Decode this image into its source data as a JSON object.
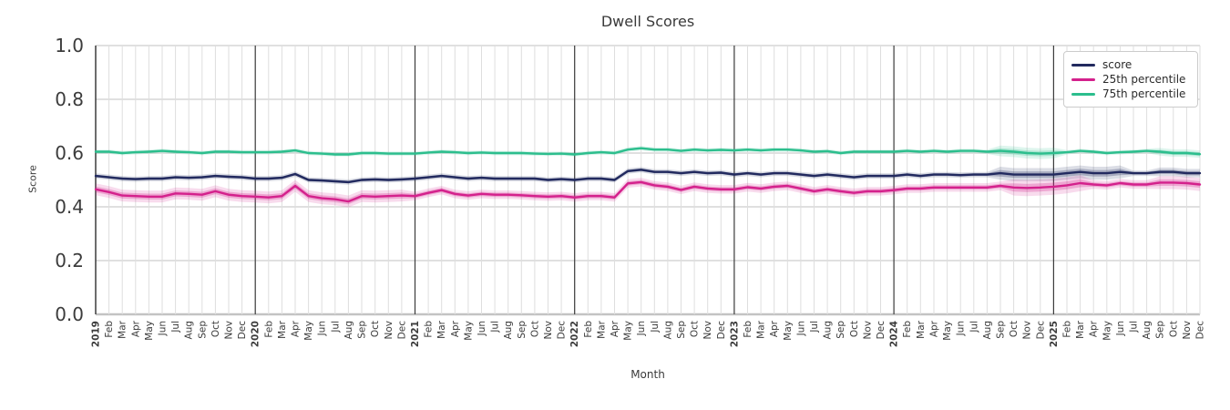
{
  "chart_data": {
    "type": "line",
    "title": "Dwell Scores",
    "xlabel": "Month",
    "ylabel": "Score",
    "ylim": [
      0.0,
      1.0
    ],
    "grid": true,
    "legend_position": "upper right",
    "y_ticks": {
      "labels": [
        "0.0",
        "0.2",
        "0.4",
        "0.6",
        "0.8",
        "1.0"
      ],
      "values": [
        0.0,
        0.2,
        0.4,
        0.6,
        0.8,
        1.0
      ]
    },
    "x": [
      "2019",
      "Feb",
      "Mar",
      "Apr",
      "May",
      "Jun",
      "Jul",
      "Aug",
      "Sep",
      "Oct",
      "Nov",
      "Dec",
      "2020",
      "Feb",
      "Mar",
      "Apr",
      "May",
      "Jun",
      "Jul",
      "Aug",
      "Sep",
      "Oct",
      "Nov",
      "Dec",
      "2021",
      "Feb",
      "Mar",
      "Apr",
      "May",
      "Jun",
      "Jul",
      "Aug",
      "Sep",
      "Oct",
      "Nov",
      "Dec",
      "2022",
      "Feb",
      "Mar",
      "Apr",
      "May",
      "Jun",
      "Jul",
      "Aug",
      "Sep",
      "Oct",
      "Nov",
      "Dec",
      "2023",
      "Feb",
      "Mar",
      "Apr",
      "May",
      "Jun",
      "Jul",
      "Aug",
      "Sep",
      "Oct",
      "Nov",
      "Dec",
      "2024",
      "Feb",
      "Mar",
      "Apr",
      "May",
      "Jun",
      "Jul",
      "Aug",
      "Sep",
      "Oct",
      "Nov",
      "Dec",
      "2025",
      "Feb",
      "Mar",
      "Apr",
      "May",
      "Jun",
      "Jul",
      "Aug",
      "Sep",
      "Oct",
      "Nov",
      "Dec"
    ],
    "year_line_indices": [
      12,
      24,
      36,
      48,
      60,
      72
    ],
    "series": [
      {
        "name": "score",
        "color": "#222a5f",
        "values": [
          0.515,
          0.51,
          0.505,
          0.503,
          0.505,
          0.505,
          0.51,
          0.508,
          0.51,
          0.515,
          0.512,
          0.51,
          0.505,
          0.505,
          0.508,
          0.522,
          0.5,
          0.498,
          0.495,
          0.492,
          0.5,
          0.502,
          0.5,
          0.502,
          0.505,
          0.51,
          0.515,
          0.51,
          0.505,
          0.508,
          0.505,
          0.505,
          0.505,
          0.505,
          0.5,
          0.503,
          0.5,
          0.505,
          0.505,
          0.5,
          0.533,
          0.538,
          0.53,
          0.53,
          0.525,
          0.53,
          0.525,
          0.527,
          0.52,
          0.525,
          0.52,
          0.525,
          0.525,
          0.52,
          0.515,
          0.52,
          0.515,
          0.51,
          0.515,
          0.515,
          0.515,
          0.52,
          0.515,
          0.52,
          0.52,
          0.518,
          0.52,
          0.52,
          0.525,
          0.52,
          0.52,
          0.52,
          0.52,
          0.525,
          0.53,
          0.525,
          0.525,
          0.53,
          0.525,
          0.525,
          0.53,
          0.53,
          0.525,
          0.525
        ],
        "band": {
          "base": 0.01,
          "segments": [
            {
              "from": 68,
              "to": 77,
              "hw": 0.024
            },
            {
              "from": 80,
              "to": 83,
              "hw": 0.016
            }
          ]
        }
      },
      {
        "name": "25th percentile",
        "color": "#d4218c",
        "values": [
          0.465,
          0.455,
          0.442,
          0.44,
          0.438,
          0.438,
          0.45,
          0.448,
          0.445,
          0.458,
          0.445,
          0.44,
          0.438,
          0.435,
          0.44,
          0.478,
          0.44,
          0.432,
          0.428,
          0.42,
          0.44,
          0.438,
          0.44,
          0.442,
          0.44,
          0.452,
          0.462,
          0.448,
          0.442,
          0.448,
          0.445,
          0.445,
          0.443,
          0.44,
          0.438,
          0.44,
          0.435,
          0.44,
          0.44,
          0.435,
          0.487,
          0.492,
          0.48,
          0.475,
          0.463,
          0.475,
          0.468,
          0.465,
          0.465,
          0.473,
          0.468,
          0.475,
          0.478,
          0.468,
          0.458,
          0.465,
          0.458,
          0.452,
          0.458,
          0.458,
          0.462,
          0.468,
          0.468,
          0.472,
          0.472,
          0.472,
          0.472,
          0.472,
          0.478,
          0.472,
          0.47,
          0.472,
          0.475,
          0.48,
          0.488,
          0.483,
          0.48,
          0.488,
          0.483,
          0.483,
          0.49,
          0.49,
          0.488,
          0.483
        ],
        "band": {
          "base": 0.016,
          "segments": [
            {
              "from": 0,
              "to": 23,
              "hw": 0.022
            },
            {
              "from": 69,
              "to": 74,
              "hw": 0.03
            },
            {
              "from": 80,
              "to": 83,
              "hw": 0.024
            }
          ]
        }
      },
      {
        "name": "75th percentile",
        "color": "#2cbe8d",
        "values": [
          0.605,
          0.605,
          0.6,
          0.603,
          0.605,
          0.608,
          0.605,
          0.603,
          0.6,
          0.605,
          0.605,
          0.603,
          0.603,
          0.603,
          0.605,
          0.61,
          0.6,
          0.598,
          0.595,
          0.595,
          0.6,
          0.6,
          0.598,
          0.598,
          0.598,
          0.602,
          0.605,
          0.603,
          0.6,
          0.602,
          0.6,
          0.6,
          0.6,
          0.598,
          0.597,
          0.598,
          0.595,
          0.6,
          0.603,
          0.6,
          0.613,
          0.618,
          0.613,
          0.613,
          0.608,
          0.613,
          0.61,
          0.612,
          0.61,
          0.613,
          0.61,
          0.613,
          0.613,
          0.61,
          0.605,
          0.607,
          0.6,
          0.605,
          0.605,
          0.605,
          0.605,
          0.608,
          0.605,
          0.608,
          0.605,
          0.608,
          0.608,
          0.605,
          0.608,
          0.605,
          0.6,
          0.598,
          0.6,
          0.603,
          0.608,
          0.605,
          0.6,
          0.603,
          0.605,
          0.608,
          0.605,
          0.6,
          0.6,
          0.596
        ],
        "band": {
          "base": 0.008,
          "segments": [
            {
              "from": 68,
              "to": 72,
              "hw": 0.02
            },
            {
              "from": 80,
              "to": 83,
              "hw": 0.014
            }
          ]
        }
      }
    ]
  }
}
